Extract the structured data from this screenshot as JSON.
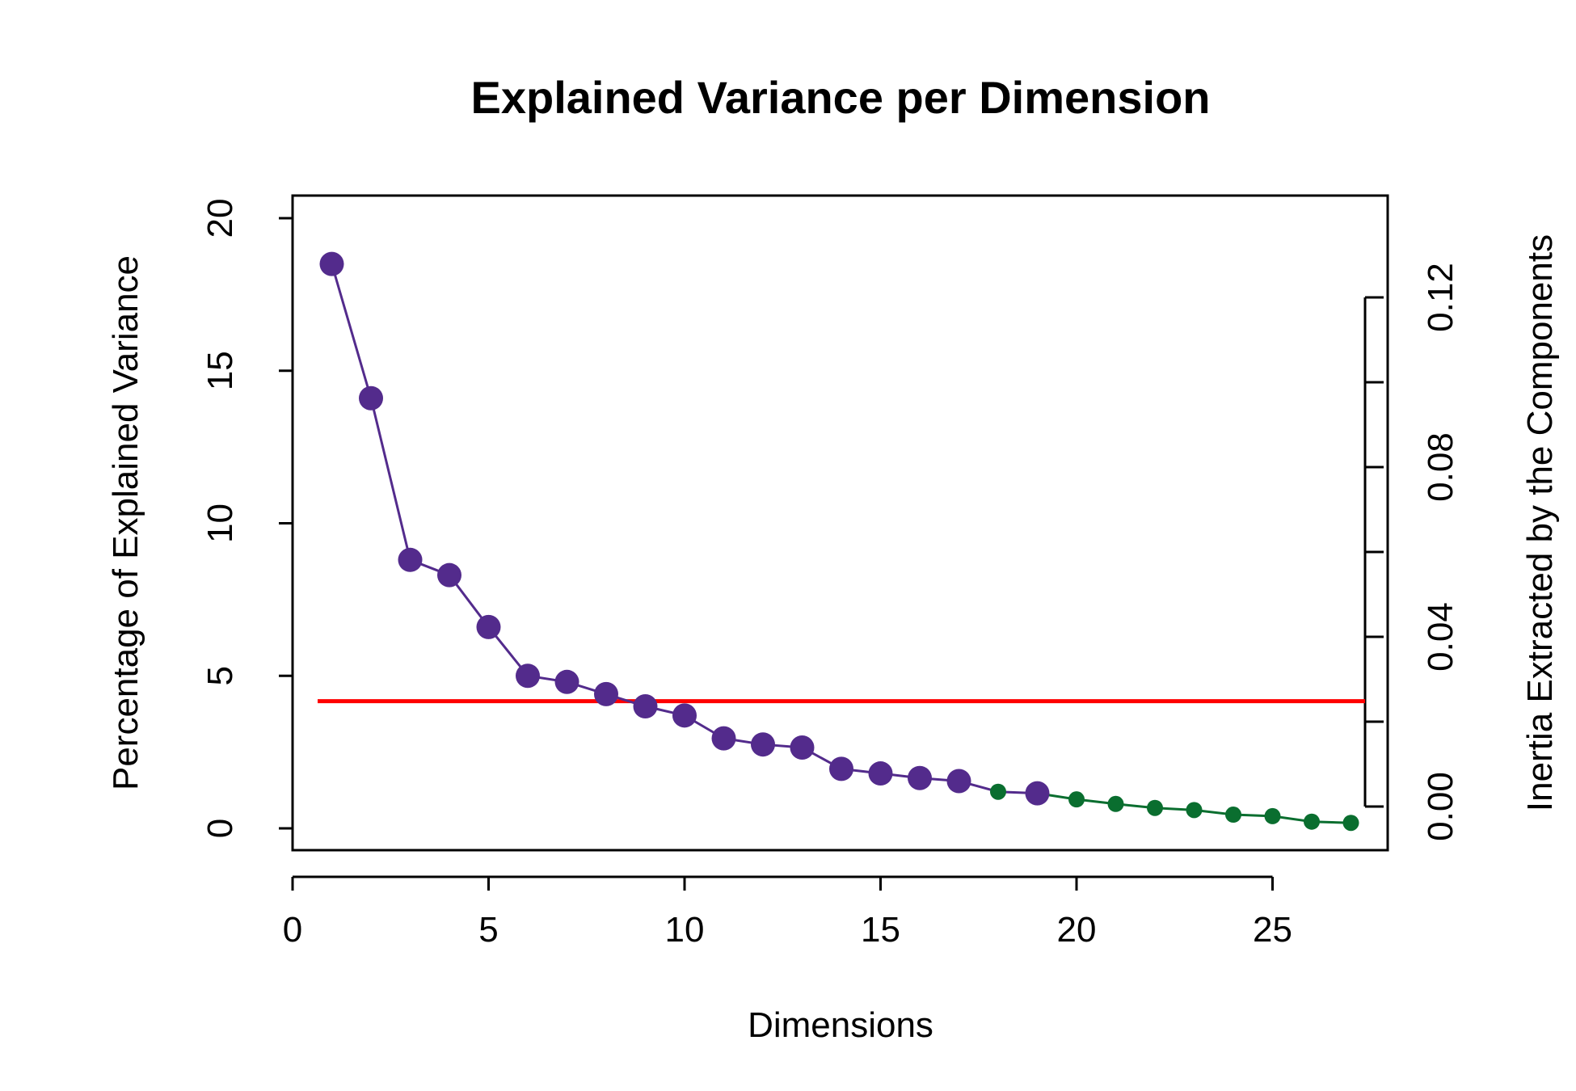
{
  "chart_data": {
    "type": "line",
    "title": "Explained Variance per Dimension",
    "xlabel": "Dimensions",
    "ylabel": "Percentage of Explained Variance",
    "ylabel_right": "Inertia Extracted by the Components",
    "xlim": [
      0,
      28
    ],
    "ylim": [
      0,
      20
    ],
    "ylim_right": [
      0,
      0.12
    ],
    "x_ticks": [
      0,
      5,
      10,
      15,
      20,
      25
    ],
    "y_ticks": [
      0,
      5,
      10,
      15,
      20
    ],
    "y_ticks_right": [
      "0.00",
      "0.04",
      "0.08",
      "0.12"
    ],
    "y_ticks_right_values": [
      0,
      0.04,
      0.08,
      0.12
    ],
    "grid": false,
    "threshold": 4.17,
    "colors": {
      "significant": "#532b8c",
      "non_significant": "#0a6e2f",
      "threshold": "#ff0000",
      "axes": "#000000"
    },
    "series": [
      {
        "x": [
          1,
          2,
          3,
          4,
          5,
          6,
          7,
          8,
          9,
          10,
          11,
          12,
          13,
          14,
          15,
          16,
          17,
          18,
          19,
          20,
          21,
          22,
          23,
          24,
          25,
          26,
          27
        ],
        "values": [
          18.5,
          14.1,
          8.8,
          8.3,
          6.6,
          5.0,
          4.8,
          4.4,
          4.0,
          3.7,
          2.95,
          2.75,
          2.65,
          1.95,
          1.8,
          1.65,
          1.55,
          1.2,
          1.15,
          0.95,
          0.8,
          0.67,
          0.6,
          0.45,
          0.4,
          0.22,
          0.18
        ],
        "significant": [
          true,
          true,
          true,
          true,
          true,
          true,
          true,
          true,
          true,
          true,
          true,
          true,
          true,
          true,
          true,
          true,
          true,
          false,
          true,
          false,
          false,
          false,
          false,
          false,
          false,
          false,
          false
        ]
      }
    ]
  }
}
